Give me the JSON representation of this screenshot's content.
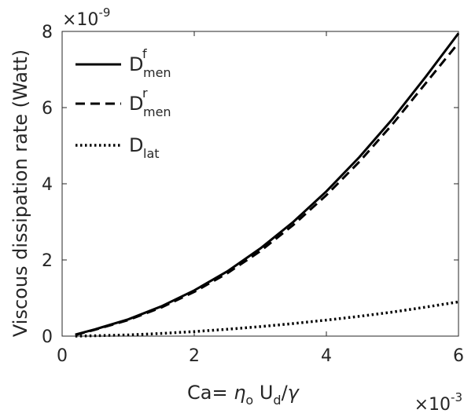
{
  "chart_data": {
    "type": "line",
    "title": "",
    "xlabel": {
      "parts": [
        {
          "text": "Ca= ",
          "italic": false
        },
        {
          "text": "η",
          "italic": true
        },
        {
          "text": "o",
          "sub": true
        },
        {
          "text": " U",
          "italic": false
        },
        {
          "text": "d",
          "sub": true
        },
        {
          "text": "/",
          "italic": false
        },
        {
          "text": "γ",
          "italic": true
        }
      ]
    },
    "ylabel": "Viscous dissipation rate (Watt)",
    "x_multiplier": {
      "base": "×10",
      "exp": "-3"
    },
    "y_multiplier": {
      "base": "×10",
      "exp": "-9"
    },
    "xlim": [
      0,
      6
    ],
    "ylim": [
      0,
      8
    ],
    "xticks": [
      0,
      2,
      4,
      6
    ],
    "yticks": [
      0,
      2,
      4,
      6,
      8
    ],
    "grid": false,
    "legend_position": "top-left",
    "series": [
      {
        "name": {
          "base": "D",
          "sup": "f",
          "sub": "men"
        },
        "style": "solid",
        "x": [
          0.2,
          0.5,
          1.0,
          1.5,
          2.0,
          2.5,
          3.0,
          3.5,
          4.0,
          4.5,
          5.0,
          5.5,
          6.0
        ],
        "y": [
          0.04,
          0.18,
          0.44,
          0.78,
          1.2,
          1.7,
          2.3,
          3.0,
          3.8,
          4.7,
          5.7,
          6.8,
          7.95
        ]
      },
      {
        "name": {
          "base": "D",
          "sup": "r",
          "sub": "men"
        },
        "style": "dashed",
        "x": [
          0.2,
          0.5,
          1.0,
          1.5,
          2.0,
          2.5,
          3.0,
          3.5,
          4.0,
          4.5,
          5.0,
          5.5,
          6.0
        ],
        "y": [
          0.03,
          0.17,
          0.42,
          0.75,
          1.16,
          1.65,
          2.23,
          2.92,
          3.7,
          4.58,
          5.56,
          6.63,
          7.7
        ]
      },
      {
        "name": {
          "base": "D",
          "sup": "",
          "sub": "lat"
        },
        "style": "dotted",
        "x": [
          0.2,
          0.5,
          1.0,
          1.5,
          2.0,
          2.5,
          3.0,
          3.5,
          4.0,
          4.5,
          5.0,
          5.5,
          6.0
        ],
        "y": [
          0.0,
          0.01,
          0.03,
          0.07,
          0.12,
          0.18,
          0.25,
          0.33,
          0.42,
          0.52,
          0.63,
          0.76,
          0.9
        ]
      }
    ]
  }
}
